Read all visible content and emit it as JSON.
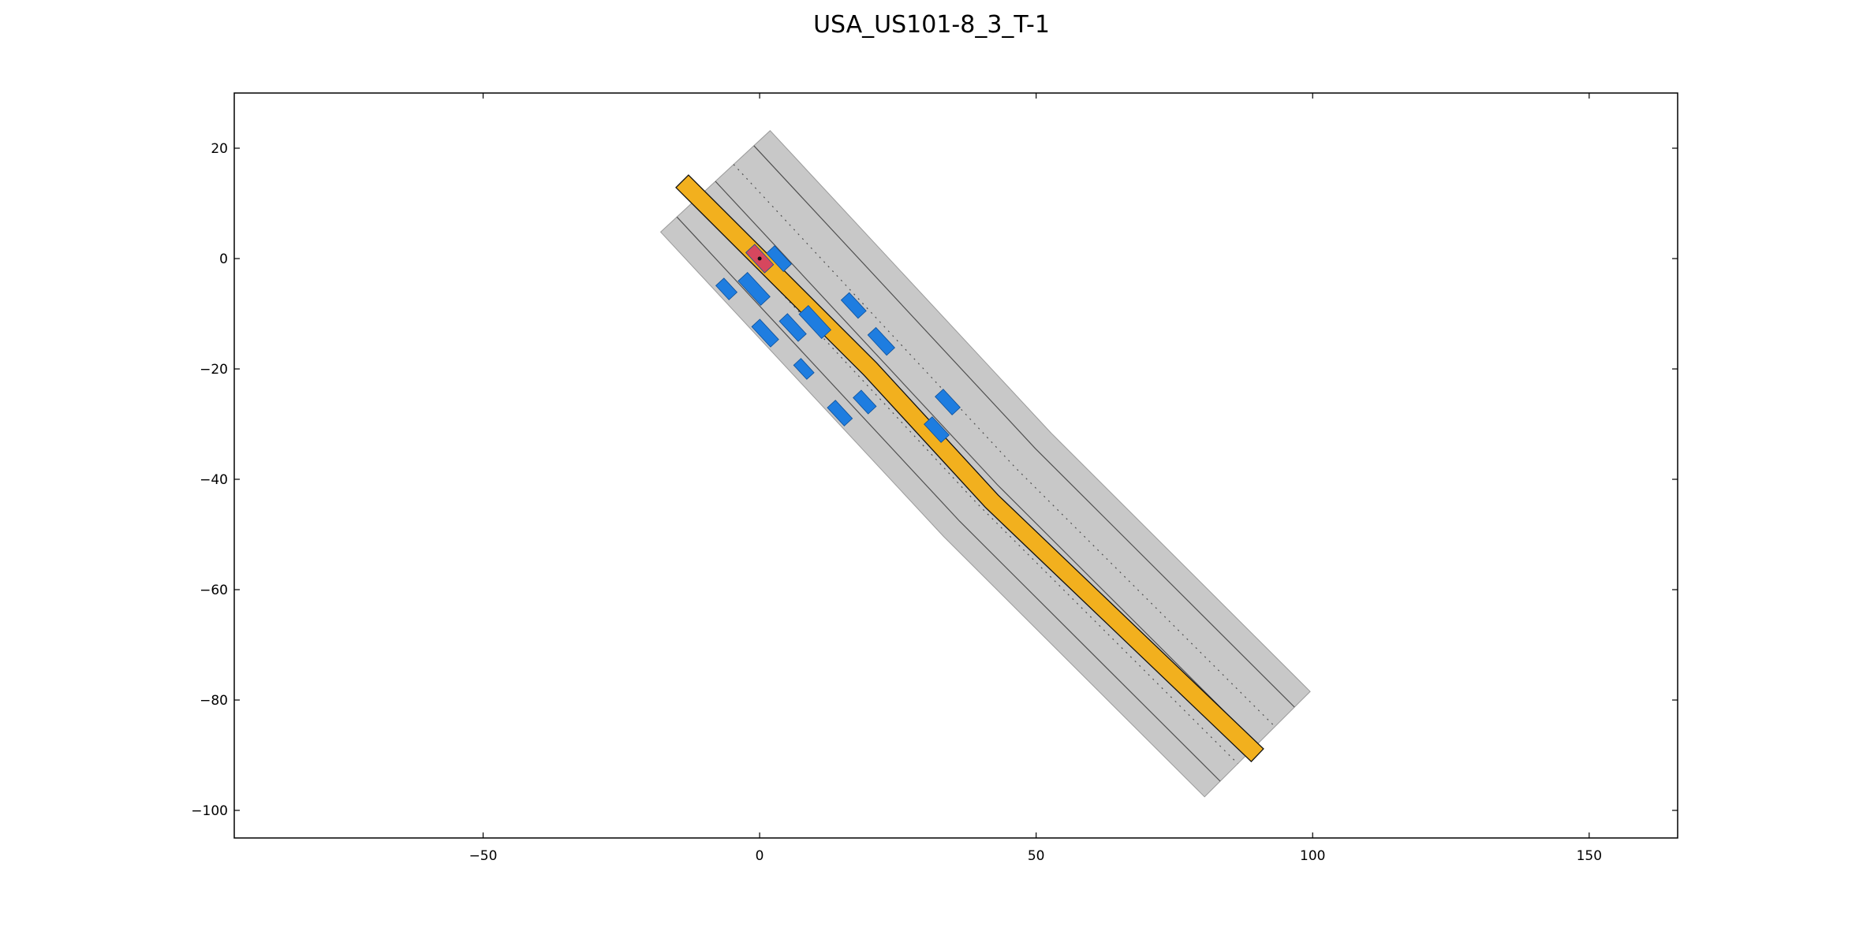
{
  "title": "USA_US101-8_3_T-1",
  "axes": {
    "xlim": [
      -95,
      166
    ],
    "ylim": [
      -105,
      30
    ],
    "xticks": [
      -50,
      0,
      50,
      100,
      150
    ],
    "yticks": [
      20,
      0,
      -20,
      -40,
      -60,
      -80,
      -100
    ],
    "xtick_labels": [
      "−50",
      "0",
      "50",
      "100",
      "150"
    ],
    "ytick_labels": [
      "20",
      "0",
      "−20",
      "−40",
      "−60",
      "−80",
      "−100"
    ]
  },
  "colors": {
    "road": "#c8c8c8",
    "lane_line": "#505050",
    "planned_route": "#f2b01e",
    "ego_vehicle": "#d6475e",
    "obstacle_vehicle": "#1e7de0"
  },
  "chart_data": {
    "type": "scatter",
    "title": "USA_US101-8_3_T-1",
    "xlabel": "",
    "ylabel": "",
    "road": {
      "centerline": [
        [
          -8,
          14
        ],
        [
          43,
          -41
        ],
        [
          90,
          -88
        ]
      ],
      "width": 27,
      "lane_offsets": [
        -9.5,
        -5,
        0,
        4.5,
        9.5
      ]
    },
    "route": [
      [
        -14,
        14
      ],
      [
        0,
        0
      ],
      [
        20,
        -20
      ],
      [
        42,
        -44
      ],
      [
        90,
        -90
      ]
    ],
    "ego": {
      "x": 0,
      "y": 0,
      "length": 5,
      "width": 2.2
    },
    "obstacles": [
      {
        "x": 3.5,
        "y": 0,
        "length": 4.5,
        "width": 2
      },
      {
        "x": -6,
        "y": -5.5,
        "length": 3.5,
        "width": 2
      },
      {
        "x": -1,
        "y": -5.5,
        "length": 6,
        "width": 2.3
      },
      {
        "x": 10,
        "y": -11.5,
        "length": 6,
        "width": 2.3
      },
      {
        "x": 6,
        "y": -12.5,
        "length": 5,
        "width": 2
      },
      {
        "x": 1,
        "y": -13.5,
        "length": 5,
        "width": 2
      },
      {
        "x": 17,
        "y": -8.5,
        "length": 4.5,
        "width": 2
      },
      {
        "x": 22,
        "y": -15,
        "length": 5,
        "width": 2
      },
      {
        "x": 8,
        "y": -20,
        "length": 3.5,
        "width": 1.8
      },
      {
        "x": 14.5,
        "y": -28,
        "length": 4.5,
        "width": 2
      },
      {
        "x": 19,
        "y": -26,
        "length": 4,
        "width": 2
      },
      {
        "x": 34,
        "y": -26,
        "length": 4.5,
        "width": 2
      },
      {
        "x": 32,
        "y": -31,
        "length": 4.5,
        "width": 2
      }
    ]
  }
}
